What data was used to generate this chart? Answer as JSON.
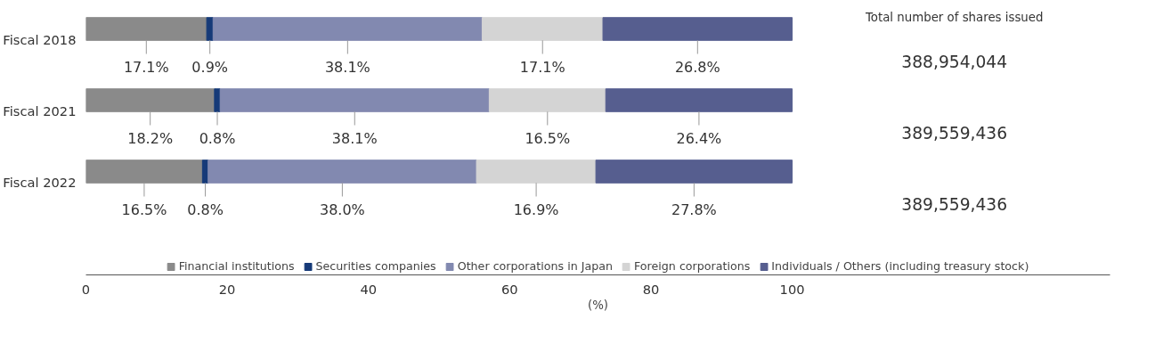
{
  "chart_data": {
    "type": "bar",
    "orientation": "horizontal",
    "stacked": true,
    "xlabel": "(%)",
    "categories": [
      "Fiscal 2018",
      "Fiscal 2021",
      "Fiscal 2022"
    ],
    "series": [
      {
        "name": "Financial institutions",
        "color": "#8a8a8a",
        "values": [
          17.1,
          18.2,
          16.5
        ],
        "value_labels": [
          "17.1%",
          "18.2%",
          "16.5%"
        ]
      },
      {
        "name": "Securities companies",
        "color": "#163a78",
        "values": [
          0.9,
          0.8,
          0.8
        ],
        "value_labels": [
          "0.9%",
          "0.8%",
          "0.8%"
        ]
      },
      {
        "name": "Other corporations in Japan",
        "color": "#8289b0",
        "values": [
          38.1,
          38.1,
          38.0
        ],
        "value_labels": [
          "38.1%",
          "38.1%",
          "38.0%"
        ]
      },
      {
        "name": "Foreign corporations",
        "color": "#d4d4d4",
        "values": [
          17.1,
          16.5,
          16.9
        ],
        "value_labels": [
          "17.1%",
          "16.5%",
          "16.9%"
        ]
      },
      {
        "name": "Individuals / Others (including treasury stock)",
        "color": "#565e8f",
        "values": [
          26.8,
          26.4,
          27.8
        ],
        "value_labels": [
          "26.8%",
          "26.4%",
          "27.8%"
        ]
      }
    ],
    "xlim": [
      0,
      145
    ],
    "xticks": [
      0,
      20,
      40,
      60,
      80,
      100
    ],
    "grid": false,
    "legend": "bottom",
    "annotations": [
      "Total number of shares issued",
      "388,954,044",
      "389,559,436",
      "389,559,436"
    ]
  }
}
